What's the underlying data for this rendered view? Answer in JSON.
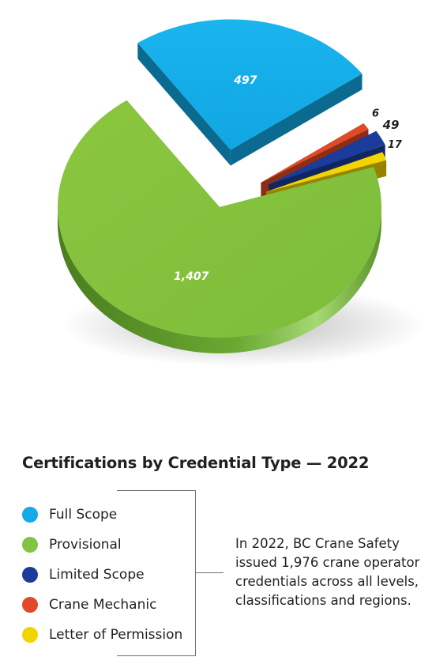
{
  "chart_data": {
    "type": "pie",
    "title": "Certifications by Credential Type — 2022",
    "categories": [
      "Full Scope",
      "Provisional",
      "Limited Scope",
      "Crane Mechanic",
      "Letter of Permission"
    ],
    "values": [
      497,
      1407,
      49,
      6,
      17
    ],
    "value_labels": [
      "497",
      "1,407",
      "49",
      "6",
      "17"
    ],
    "colors": [
      "#12abe8",
      "#82c341",
      "#1b3c9b",
      "#e04a26",
      "#f2d500"
    ],
    "style": "3D exploded pie",
    "legend_position": "bottom-left"
  },
  "note": {
    "lines": [
      "In 2022, BC Crane Safety",
      "issued 1,976 crane operator",
      "credentials across all levels,",
      "classifications and regions."
    ]
  }
}
